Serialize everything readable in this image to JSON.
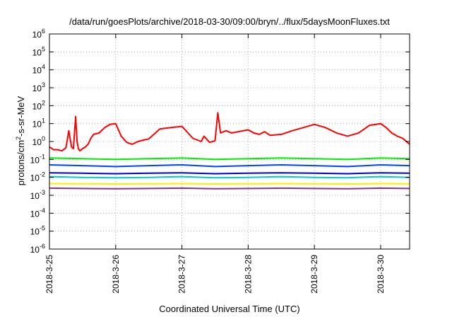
{
  "chart_data": {
    "type": "line",
    "title": "/data/run/goesPlots/archive/2018-03-30/09:00/bryn/../flux/5daysMoonFluxes.txt",
    "xlabel": "Coordinated Universal Time (UTC)",
    "ylabel": {
      "prefix": "protons/cm",
      "sup": "2",
      "suffix": "-s-sr-MeV"
    },
    "yscale": "log",
    "ylim": [
      1e-06,
      1000000.0
    ],
    "xlim": [
      "2018-03-25T00:00",
      "2018-03-30T10:30"
    ],
    "grid": true,
    "xticks": [
      {
        "label": "2018-3-25",
        "time": "2018-03-25T00:00"
      },
      {
        "label": "2018-3-26",
        "time": "2018-03-26T00:00"
      },
      {
        "label": "2018-3-27",
        "time": "2018-03-27T00:00"
      },
      {
        "label": "2018-3-28",
        "time": "2018-03-28T00:00"
      },
      {
        "label": "2018-3-29",
        "time": "2018-03-29T00:00"
      },
      {
        "label": "2018-3-30",
        "time": "2018-03-30T00:00"
      }
    ],
    "yticks": [
      {
        "base": "10",
        "exp": "-6",
        "value": 1e-06
      },
      {
        "base": "10",
        "exp": "-5",
        "value": 1e-05
      },
      {
        "base": "10",
        "exp": "-4",
        "value": 0.0001
      },
      {
        "base": "10",
        "exp": "-3",
        "value": 0.001
      },
      {
        "base": "10",
        "exp": "-2",
        "value": 0.01
      },
      {
        "base": "10",
        "exp": "-1",
        "value": 0.1
      },
      {
        "base": "10",
        "exp": "0",
        "value": 1
      },
      {
        "base": "10",
        "exp": "1",
        "value": 10
      },
      {
        "base": "10",
        "exp": "2",
        "value": 100
      },
      {
        "base": "10",
        "exp": "3",
        "value": 1000
      },
      {
        "base": "10",
        "exp": "4",
        "value": 10000
      },
      {
        "base": "10",
        "exp": "5",
        "value": 100000
      },
      {
        "base": "10",
        "exp": "6",
        "value": 1000000
      }
    ],
    "series": [
      {
        "color": "#ff0000",
        "x": [
          "2018-03-25T00:00",
          "2018-03-25T01:30",
          "2018-03-25T03:00",
          "2018-03-25T04:30",
          "2018-03-25T06:00",
          "2018-03-25T07:00",
          "2018-03-25T08:00",
          "2018-03-25T08:40",
          "2018-03-25T09:00",
          "2018-03-25T09:30",
          "2018-03-25T10:00",
          "2018-03-25T10:30",
          "2018-03-25T11:00",
          "2018-03-25T12:00",
          "2018-03-25T13:00",
          "2018-03-25T14:00",
          "2018-03-25T15:00",
          "2018-03-25T16:00",
          "2018-03-25T18:00",
          "2018-03-25T20:00",
          "2018-03-25T22:00",
          "2018-03-26T00:00",
          "2018-03-26T02:00",
          "2018-03-26T04:00",
          "2018-03-26T06:00",
          "2018-03-26T08:00",
          "2018-03-26T10:00",
          "2018-03-26T12:00",
          "2018-03-26T16:00",
          "2018-03-26T20:00",
          "2018-03-27T00:00",
          "2018-03-27T04:00",
          "2018-03-27T07:00",
          "2018-03-27T08:00",
          "2018-03-27T10:00",
          "2018-03-27T12:00",
          "2018-03-27T13:00",
          "2018-03-27T14:00",
          "2018-03-27T16:00",
          "2018-03-27T18:00",
          "2018-03-28T00:00",
          "2018-03-28T02:00",
          "2018-03-28T04:00",
          "2018-03-28T06:00",
          "2018-03-28T08:00",
          "2018-03-28T12:00",
          "2018-03-28T16:00",
          "2018-03-28T20:00",
          "2018-03-29T00:00",
          "2018-03-29T04:00",
          "2018-03-29T08:00",
          "2018-03-29T12:00",
          "2018-03-29T16:00",
          "2018-03-29T20:00",
          "2018-03-30T00:00",
          "2018-03-30T02:00",
          "2018-03-30T04:00",
          "2018-03-30T06:00",
          "2018-03-30T08:00",
          "2018-03-30T10:30"
        ],
        "y": [
          0.5,
          0.35,
          0.35,
          0.3,
          0.45,
          4.0,
          0.5,
          0.4,
          2.0,
          25,
          1.0,
          0.4,
          0.3,
          0.4,
          0.5,
          0.7,
          1.5,
          2.5,
          3.0,
          6,
          9,
          10,
          2.0,
          0.9,
          0.7,
          1.0,
          1.2,
          1.4,
          5,
          6,
          7,
          1.5,
          1.0,
          2.0,
          0.9,
          1.1,
          40,
          3,
          4,
          3,
          4.5,
          3,
          2.5,
          3.5,
          2.2,
          2.5,
          4,
          6,
          9,
          6,
          3,
          2,
          3,
          8,
          10,
          6,
          3,
          2,
          1.5,
          0.7
        ]
      },
      {
        "color": "#00ee00",
        "x": [
          "2018-03-25T00:00",
          "2018-03-25T12:00",
          "2018-03-26T00:00",
          "2018-03-26T12:00",
          "2018-03-27T00:00",
          "2018-03-27T12:00",
          "2018-03-28T00:00",
          "2018-03-28T12:00",
          "2018-03-29T00:00",
          "2018-03-29T12:00",
          "2018-03-30T00:00",
          "2018-03-30T10:30"
        ],
        "y": [
          0.12,
          0.11,
          0.1,
          0.11,
          0.12,
          0.1,
          0.11,
          0.12,
          0.11,
          0.1,
          0.12,
          0.11
        ]
      },
      {
        "color": "#0044ff",
        "x": [
          "2018-03-25T00:00",
          "2018-03-25T12:00",
          "2018-03-26T00:00",
          "2018-03-26T12:00",
          "2018-03-27T00:00",
          "2018-03-27T12:00",
          "2018-03-28T00:00",
          "2018-03-28T12:00",
          "2018-03-29T00:00",
          "2018-03-29T12:00",
          "2018-03-30T00:00",
          "2018-03-30T10:30"
        ],
        "y": [
          0.05,
          0.045,
          0.04,
          0.045,
          0.05,
          0.04,
          0.045,
          0.05,
          0.045,
          0.04,
          0.05,
          0.045
        ]
      },
      {
        "color": "#0000cc",
        "x": [
          "2018-03-25T00:00",
          "2018-03-25T12:00",
          "2018-03-26T00:00",
          "2018-03-26T12:00",
          "2018-03-27T00:00",
          "2018-03-27T12:00",
          "2018-03-28T00:00",
          "2018-03-28T12:00",
          "2018-03-29T00:00",
          "2018-03-29T12:00",
          "2018-03-30T00:00",
          "2018-03-30T10:30"
        ],
        "y": [
          0.018,
          0.017,
          0.016,
          0.017,
          0.018,
          0.016,
          0.017,
          0.018,
          0.017,
          0.016,
          0.018,
          0.017
        ]
      },
      {
        "color": "#00cccc",
        "x": [
          "2018-03-25T00:00",
          "2018-03-25T12:00",
          "2018-03-26T00:00",
          "2018-03-26T12:00",
          "2018-03-27T00:00",
          "2018-03-27T12:00",
          "2018-03-28T00:00",
          "2018-03-28T12:00",
          "2018-03-29T00:00",
          "2018-03-29T12:00",
          "2018-03-30T00:00",
          "2018-03-30T10:30"
        ],
        "y": [
          0.011,
          0.01,
          0.0095,
          0.01,
          0.011,
          0.0095,
          0.01,
          0.011,
          0.01,
          0.0095,
          0.011,
          0.01
        ]
      },
      {
        "color": "#ffee00",
        "x": [
          "2018-03-25T00:00",
          "2018-03-25T12:00",
          "2018-03-26T00:00",
          "2018-03-26T12:00",
          "2018-03-27T00:00",
          "2018-03-27T12:00",
          "2018-03-28T00:00",
          "2018-03-28T12:00",
          "2018-03-29T00:00",
          "2018-03-29T12:00",
          "2018-03-30T00:00",
          "2018-03-30T10:30"
        ],
        "y": [
          0.0045,
          0.0044,
          0.0043,
          0.0044,
          0.0045,
          0.0043,
          0.0044,
          0.0045,
          0.0044,
          0.0043,
          0.0045,
          0.0044
        ]
      },
      {
        "color": "#883388",
        "x": [
          "2018-03-25T00:00",
          "2018-03-25T12:00",
          "2018-03-26T00:00",
          "2018-03-26T12:00",
          "2018-03-27T00:00",
          "2018-03-27T12:00",
          "2018-03-28T00:00",
          "2018-03-28T12:00",
          "2018-03-29T00:00",
          "2018-03-29T12:00",
          "2018-03-30T00:00",
          "2018-03-30T10:30"
        ],
        "y": [
          0.0025,
          0.0024,
          0.0023,
          0.0024,
          0.0025,
          0.0023,
          0.0024,
          0.0025,
          0.0024,
          0.0023,
          0.0025,
          0.0024
        ]
      }
    ]
  }
}
